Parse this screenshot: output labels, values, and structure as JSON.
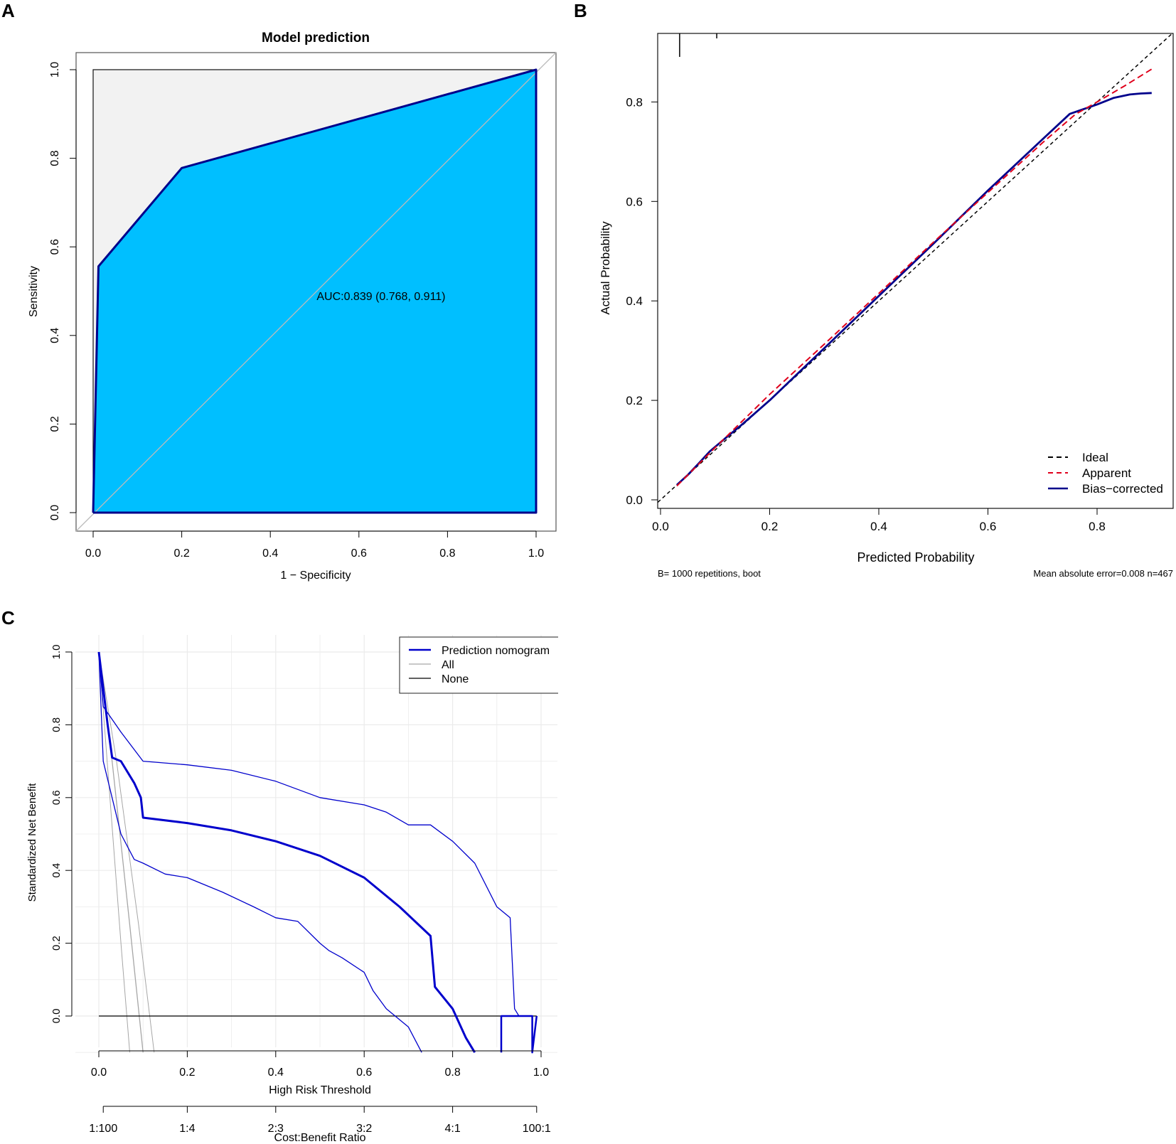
{
  "colors": {
    "roc_fill": "#00BFFF",
    "roc_line": "#00008B",
    "roc_bg": "#F2F2F2",
    "ideal": "#000000",
    "apparent": "#E0001B",
    "bias": "#00008B",
    "dca_model": "#0000CC",
    "dca_all": "#A6A6A6",
    "dca_none": "#000000",
    "grid": "#EBEBEB"
  },
  "chart_data": [
    {
      "panel": "A",
      "type": "line",
      "title": "Model prediction",
      "xlabel": "1 − Specificity",
      "ylabel": "Sensitivity",
      "xlim": [
        0,
        1
      ],
      "ylim": [
        0,
        1
      ],
      "x_ticks": [
        "0.0",
        "0.2",
        "0.4",
        "0.6",
        "0.8",
        "1.0"
      ],
      "y_ticks": [
        "0.0",
        "0.2",
        "0.4",
        "0.6",
        "0.8",
        "1.0"
      ],
      "roc": {
        "x": [
          0,
          0.012,
          0.2,
          1.0
        ],
        "y": [
          0,
          0.556,
          0.778,
          1.0
        ]
      },
      "annotation": "AUC:0.839 (0.768, 0.911)",
      "grid": false
    },
    {
      "panel": "B",
      "type": "line",
      "title": "",
      "xlabel": "Predicted Probability",
      "ylabel": "Actual Probability",
      "xlim": [
        0,
        0.9
      ],
      "ylim": [
        0,
        0.9
      ],
      "x_ticks": [
        "0.0",
        "0.2",
        "0.4",
        "0.6",
        "0.8"
      ],
      "y_ticks": [
        "0.0",
        "0.2",
        "0.4",
        "0.6",
        "0.8"
      ],
      "rug": [
        0.035,
        0.103
      ],
      "series": [
        {
          "name": "Ideal",
          "style": "dashed",
          "x": [
            0,
            0.9
          ],
          "y": [
            0,
            0.9
          ]
        },
        {
          "name": "Apparent",
          "style": "dashed",
          "x": [
            0.03,
            0.1,
            0.2,
            0.3,
            0.4,
            0.5,
            0.6,
            0.7,
            0.76,
            0.8,
            0.85,
            0.9
          ],
          "y": [
            0.028,
            0.105,
            0.212,
            0.313,
            0.415,
            0.518,
            0.618,
            0.718,
            0.775,
            0.8,
            0.832,
            0.866
          ]
        },
        {
          "name": "Bias−corrected",
          "style": "solid",
          "x": [
            0.03,
            0.05,
            0.07,
            0.09,
            0.12,
            0.15,
            0.2,
            0.3,
            0.4,
            0.5,
            0.6,
            0.7,
            0.75,
            0.8,
            0.83,
            0.86,
            0.88,
            0.9
          ],
          "y": [
            0.03,
            0.05,
            0.073,
            0.097,
            0.125,
            0.152,
            0.2,
            0.305,
            0.41,
            0.515,
            0.622,
            0.725,
            0.776,
            0.795,
            0.808,
            0.815,
            0.817,
            0.818
          ]
        }
      ],
      "legend": [
        "Ideal",
        "Apparent",
        "Bias−corrected"
      ],
      "legend_position": "bottom-right",
      "footnote_left": "B= 1000 repetitions, boot",
      "footnote_right": "Mean absolute error=0.008 n=467",
      "grid": false
    },
    {
      "panel": "C",
      "type": "line",
      "title": "",
      "xlabel": "High Risk Threshold",
      "ylabel": "Standardized Net Benefit",
      "secondary_xlabel": "Cost:Benefit Ratio",
      "xlim": [
        0,
        1
      ],
      "ylim": [
        -0.1,
        1.0
      ],
      "x_ticks": [
        "0.0",
        "0.2",
        "0.4",
        "0.6",
        "0.8",
        "1.0"
      ],
      "y_ticks": [
        "0.0",
        "0.2",
        "0.4",
        "0.6",
        "0.8",
        "1.0"
      ],
      "cost_benefit_ticks": [
        "1:100",
        "1:4",
        "2:3",
        "3:2",
        "4:1",
        "100:1"
      ],
      "series": [
        {
          "name": "Prediction nomogram",
          "role": "estimate",
          "x": [
            0,
            0.02,
            0.03,
            0.05,
            0.08,
            0.095,
            0.1,
            0.2,
            0.3,
            0.4,
            0.5,
            0.6,
            0.68,
            0.75,
            0.76,
            0.8,
            0.83,
            0.85
          ],
          "y": [
            1.0,
            0.8,
            0.71,
            0.7,
            0.64,
            0.6,
            0.545,
            0.53,
            0.51,
            0.48,
            0.44,
            0.38,
            0.3,
            0.22,
            0.08,
            0.02,
            -0.06,
            -0.1
          ]
        },
        {
          "name": "Prediction nomogram upper",
          "role": "ci",
          "x": [
            0,
            0.01,
            0.05,
            0.1,
            0.2,
            0.3,
            0.4,
            0.5,
            0.6,
            0.65,
            0.7,
            0.75,
            0.8,
            0.85,
            0.9,
            0.93,
            0.94,
            0.95
          ],
          "y": [
            1.0,
            0.85,
            0.78,
            0.7,
            0.69,
            0.675,
            0.645,
            0.6,
            0.58,
            0.56,
            0.525,
            0.525,
            0.48,
            0.42,
            0.3,
            0.27,
            0.02,
            0.0
          ]
        },
        {
          "name": "Prediction nomogram lower",
          "role": "ci",
          "x": [
            0,
            0.01,
            0.05,
            0.08,
            0.1,
            0.15,
            0.2,
            0.28,
            0.35,
            0.4,
            0.45,
            0.5,
            0.52,
            0.55,
            0.6,
            0.62,
            0.65,
            0.7,
            0.73
          ],
          "y": [
            1.0,
            0.7,
            0.5,
            0.43,
            0.42,
            0.39,
            0.38,
            0.34,
            0.3,
            0.27,
            0.26,
            0.2,
            0.18,
            0.16,
            0.12,
            0.07,
            0.02,
            -0.03,
            -0.1
          ]
        },
        {
          "name": "All",
          "role": "all",
          "x": [
            0,
            0.03,
            0.07,
            0.1
          ],
          "y": [
            1.0,
            0.7,
            0.25,
            -0.1
          ]
        },
        {
          "name": "All upper",
          "role": "all_ci",
          "x": [
            0,
            0.04,
            0.09,
            0.125
          ],
          "y": [
            1.0,
            0.7,
            0.25,
            -0.1
          ]
        },
        {
          "name": "All lower",
          "role": "all_ci",
          "x": [
            0,
            0.025,
            0.05,
            0.07
          ],
          "y": [
            1.0,
            0.6,
            0.2,
            -0.1
          ]
        },
        {
          "name": "None",
          "role": "none",
          "x": [
            0,
            0.99
          ],
          "y": [
            0,
            0
          ]
        },
        {
          "name": "Prediction nomogram tail",
          "role": "tail",
          "x": [
            0.91,
            0.91,
            0.92,
            0.98,
            0.98,
            0.99
          ],
          "y": [
            -0.1,
            0,
            0,
            0,
            -0.1,
            0
          ]
        }
      ],
      "legend": [
        "Prediction nomogram",
        "All",
        "None"
      ],
      "legend_position": "top-right",
      "grid": true
    }
  ]
}
